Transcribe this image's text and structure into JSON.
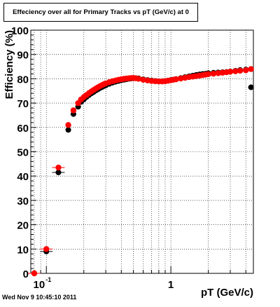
{
  "title": "Effeciency over all for Primary Tracks vs pT (GeV/c) at 0",
  "timestamp": "Wed Nov  9 10:45:10 2011",
  "chart_data": {
    "type": "scatter",
    "title": "Effeciency over all for Primary Tracks vs pT (GeV/c) at 0",
    "xlabel": "pT (GeV/c)",
    "ylabel": "Efficiency (%)",
    "xscale": "log",
    "xlim": [
      0.075,
      4.6
    ],
    "ylim": [
      0,
      100
    ],
    "yticks": [
      0,
      10,
      20,
      30,
      40,
      50,
      60,
      70,
      80,
      90,
      100
    ],
    "xtick_labels": [
      "10",
      "-1",
      "1"
    ],
    "grid": true,
    "colors": {
      "series_a": "#000000",
      "series_b": "#ff0000"
    },
    "series": [
      {
        "x": [
          0.08,
          0.1,
          0.125,
          0.15,
          0.165,
          0.18,
          0.19,
          0.2,
          0.21,
          0.22,
          0.23,
          0.24,
          0.25,
          0.26,
          0.27,
          0.28,
          0.29,
          0.3,
          0.32,
          0.34,
          0.36,
          0.38,
          0.4,
          0.42,
          0.44,
          0.46,
          0.48,
          0.5,
          0.52,
          0.55,
          0.6,
          0.65,
          0.7,
          0.75,
          0.8,
          0.85,
          0.9,
          0.95,
          1.0,
          1.05,
          1.1,
          1.2,
          1.3,
          1.4,
          1.5,
          1.6,
          1.7,
          1.8,
          1.9,
          2.0,
          2.2,
          2.4,
          2.6,
          2.8,
          3.0,
          3.3,
          3.6,
          4.0,
          4.4
        ],
        "y": [
          0,
          9,
          41.5,
          59,
          65.5,
          68.5,
          70.5,
          71.5,
          72.5,
          73.3,
          74,
          74.6,
          75.2,
          75.7,
          76.2,
          76.6,
          77,
          77.3,
          77.9,
          78.4,
          78.8,
          79.1,
          79.4,
          79.6,
          79.8,
          80,
          80.1,
          80.2,
          80.3,
          80.2,
          79.8,
          79.5,
          79.3,
          79.1,
          79,
          79,
          79.1,
          79.3,
          79.5,
          79.7,
          79.9,
          80.3,
          80.7,
          81,
          81.3,
          81.6,
          81.8,
          82,
          82.1,
          82.3,
          82.5,
          82.6,
          82.7,
          82.8,
          83,
          83.3,
          83.6,
          83.8,
          76.5
        ]
      },
      {
        "x": [
          0.08,
          0.1,
          0.125,
          0.15,
          0.165,
          0.18,
          0.19,
          0.2,
          0.21,
          0.22,
          0.23,
          0.24,
          0.25,
          0.26,
          0.27,
          0.28,
          0.29,
          0.3,
          0.32,
          0.34,
          0.36,
          0.38,
          0.4,
          0.42,
          0.44,
          0.46,
          0.48,
          0.5,
          0.52,
          0.55,
          0.6,
          0.65,
          0.7,
          0.75,
          0.8,
          0.85,
          0.9,
          0.95,
          1.0,
          1.05,
          1.1,
          1.2,
          1.3,
          1.4,
          1.5,
          1.6,
          1.7,
          1.8,
          1.9,
          2.0,
          2.2,
          2.4,
          2.6,
          2.8,
          3.0,
          3.3,
          3.6,
          4.0,
          4.4
        ],
        "y": [
          0,
          10,
          43.5,
          61,
          67,
          70,
          71.5,
          72.5,
          73.3,
          74.1,
          74.8,
          75.4,
          76,
          76.5,
          77,
          77.4,
          77.8,
          78.1,
          78.6,
          79,
          79.3,
          79.6,
          79.8,
          80,
          80.1,
          80.2,
          80.3,
          80.3,
          80.2,
          80,
          79.6,
          79.3,
          79.1,
          79,
          78.9,
          78.9,
          79,
          79.2,
          79.4,
          79.6,
          79.8,
          80.1,
          80.4,
          80.7,
          80.9,
          81.1,
          81.3,
          81.5,
          81.7,
          81.9,
          82.1,
          82.3,
          82.5,
          82.7,
          82.9,
          83.1,
          83.3,
          83.5,
          84
        ]
      }
    ]
  }
}
